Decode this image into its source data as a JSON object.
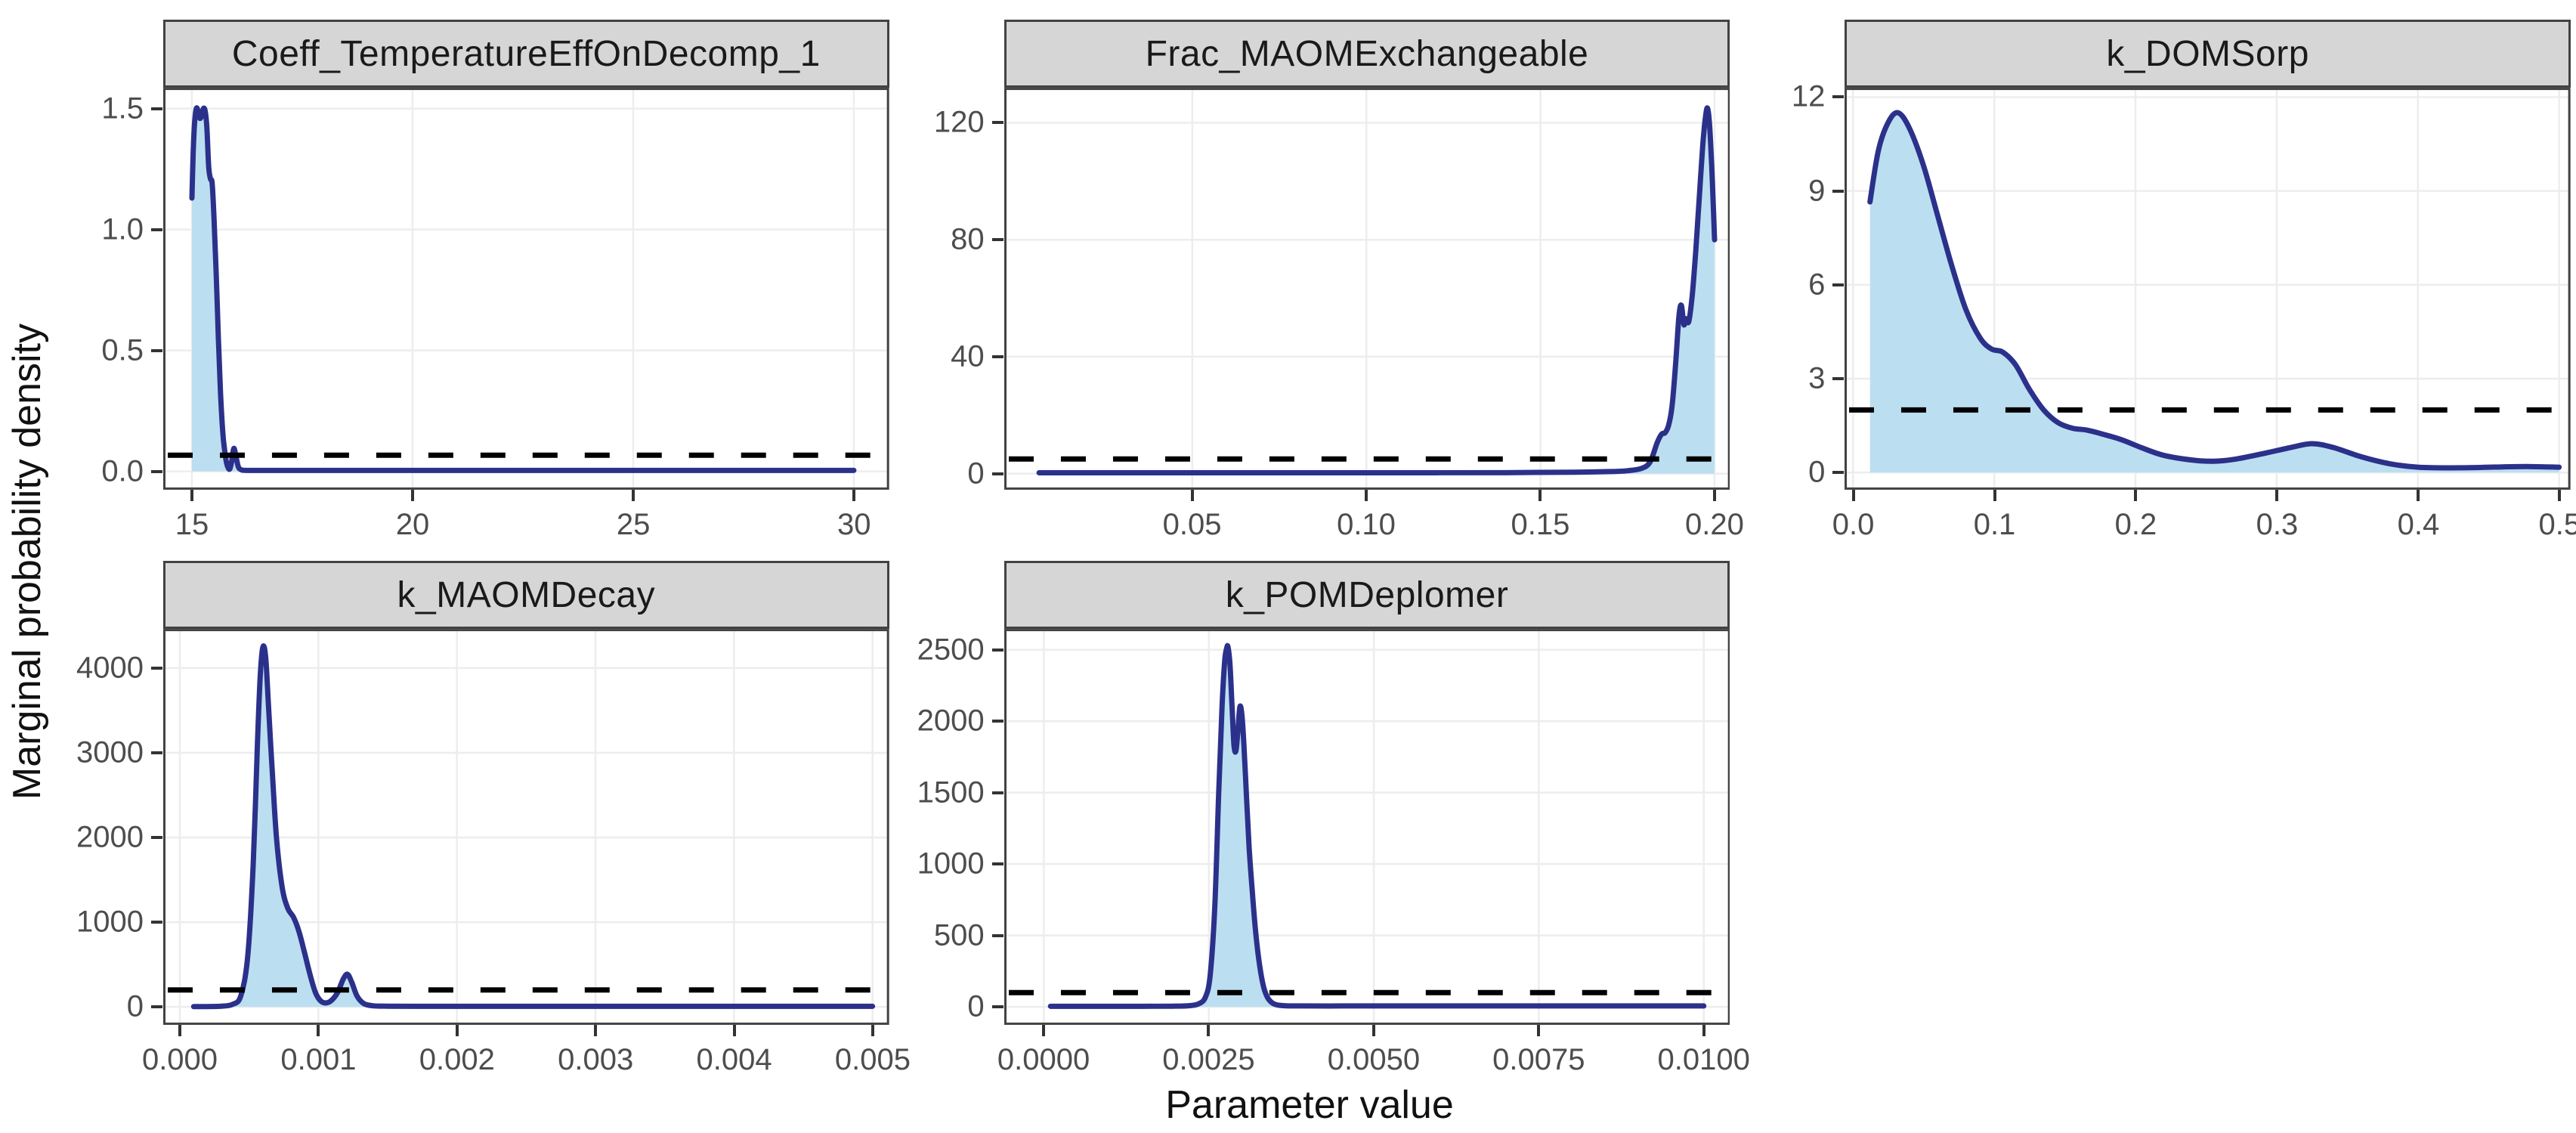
{
  "figure": {
    "xlabel": "Parameter value",
    "ylabel": "Marginal probability density"
  },
  "style": {
    "line_color": "#2B318A",
    "fill_color": "#BBDFF1",
    "prior_line_color": "#000000",
    "strip_bg": "#D6D6D6",
    "strip_text_color": "#1A1A1A",
    "panel_border_color": "#424242",
    "grid_color": "#EDEDED",
    "tick_mark_color": "#333333",
    "tick_label_color": "#4D4D4D",
    "background": "#FFFFFF"
  },
  "chart_data": [
    {
      "type": "area",
      "title": "Coeff_TemperatureEffOnDecomp_1",
      "xlim": [
        14.35,
        30.8
      ],
      "ylim": [
        -0.076,
        1.586
      ],
      "xtick_values": [
        15,
        20,
        25,
        30
      ],
      "xtick_labels": [
        "15",
        "20",
        "25",
        "30"
      ],
      "ytick_values": [
        0,
        0.5,
        1.0,
        1.5
      ],
      "ytick_labels": [
        "0.0",
        "0.5",
        "1.0",
        "1.5"
      ],
      "prior_density": 0.0667,
      "density_x": [
        15.0,
        15.03,
        15.06,
        15.1,
        15.14,
        15.18,
        15.22,
        15.26,
        15.3,
        15.34,
        15.38,
        15.42,
        15.46,
        15.5,
        15.55,
        15.6,
        15.65,
        15.7,
        15.74,
        15.78,
        15.82,
        15.86,
        15.9,
        15.95,
        16.0,
        16.05,
        16.1,
        16.2,
        16.5,
        17.0,
        18.0,
        20.0,
        23.0,
        26.0,
        30.0
      ],
      "density_y": [
        1.13,
        1.32,
        1.44,
        1.5,
        1.49,
        1.46,
        1.47,
        1.5,
        1.49,
        1.42,
        1.26,
        1.21,
        1.19,
        1.05,
        0.82,
        0.55,
        0.32,
        0.16,
        0.09,
        0.04,
        0.015,
        0.01,
        0.04,
        0.095,
        0.06,
        0.02,
        0.008,
        0.004,
        0.004,
        0.004,
        0.004,
        0.004,
        0.004,
        0.004,
        0.004
      ]
    },
    {
      "type": "area",
      "title": "Frac_MAOMExchangeable",
      "xlim": [
        -0.004,
        0.2045
      ],
      "ylim": [
        -5.5,
        132
      ],
      "xtick_values": [
        0.05,
        0.1,
        0.15,
        0.2
      ],
      "xtick_labels": [
        "0.05",
        "0.10",
        "0.15",
        "0.20"
      ],
      "ytick_values": [
        0,
        40,
        80,
        120
      ],
      "ytick_labels": [
        "0",
        "40",
        "80",
        "120"
      ],
      "prior_density": 5,
      "density_x": [
        0.006,
        0.02,
        0.05,
        0.08,
        0.11,
        0.14,
        0.16,
        0.17,
        0.175,
        0.179,
        0.1815,
        0.1835,
        0.1848,
        0.1858,
        0.1868,
        0.1878,
        0.1888,
        0.1898,
        0.1905,
        0.1912,
        0.1918,
        0.1926,
        0.1936,
        0.1946,
        0.1956,
        0.1966,
        0.1974,
        0.198,
        0.1986,
        0.1992,
        0.1997,
        0.2
      ],
      "density_y": [
        0.3,
        0.3,
        0.3,
        0.3,
        0.3,
        0.35,
        0.5,
        0.7,
        1.0,
        1.8,
        4.0,
        10.5,
        13.5,
        14.0,
        16.5,
        23,
        37,
        54,
        57.5,
        51,
        53,
        52,
        61,
        76,
        94,
        112,
        122,
        125,
        119,
        105,
        90,
        80
      ]
    },
    {
      "type": "area",
      "title": "k_DOMSorp",
      "xlim": [
        -0.006,
        0.508
      ],
      "ylim": [
        -0.55,
        12.3
      ],
      "xtick_values": [
        0.0,
        0.1,
        0.2,
        0.3,
        0.4,
        0.5
      ],
      "xtick_labels": [
        "0.0",
        "0.1",
        "0.2",
        "0.3",
        "0.4",
        "0.5"
      ],
      "ytick_values": [
        0,
        3,
        6,
        9,
        12
      ],
      "ytick_labels": [
        "0",
        "3",
        "6",
        "9",
        "12"
      ],
      "prior_density": 2,
      "density_x": [
        0.012,
        0.018,
        0.025,
        0.032,
        0.04,
        0.05,
        0.06,
        0.07,
        0.08,
        0.09,
        0.098,
        0.106,
        0.115,
        0.125,
        0.135,
        0.145,
        0.155,
        0.165,
        0.175,
        0.19,
        0.205,
        0.22,
        0.24,
        0.255,
        0.27,
        0.29,
        0.31,
        0.325,
        0.34,
        0.36,
        0.38,
        0.4,
        0.43,
        0.46,
        0.48,
        0.5
      ],
      "density_y": [
        8.65,
        10.3,
        11.2,
        11.5,
        11.0,
        9.8,
        8.2,
        6.6,
        5.2,
        4.3,
        3.95,
        3.85,
        3.45,
        2.65,
        2.0,
        1.6,
        1.42,
        1.36,
        1.25,
        1.05,
        0.78,
        0.55,
        0.4,
        0.36,
        0.42,
        0.6,
        0.8,
        0.92,
        0.8,
        0.5,
        0.28,
        0.17,
        0.15,
        0.18,
        0.19,
        0.17
      ]
    },
    {
      "type": "area",
      "title": "k_MAOMDecay",
      "xlim": [
        -0.00012,
        0.00512
      ],
      "ylim": [
        -212,
        4462
      ],
      "xtick_values": [
        0.0,
        0.001,
        0.002,
        0.003,
        0.004,
        0.005
      ],
      "xtick_labels": [
        "0.000",
        "0.001",
        "0.002",
        "0.003",
        "0.004",
        "0.005"
      ],
      "ytick_values": [
        0,
        1000,
        2000,
        3000,
        4000
      ],
      "ytick_labels": [
        "0",
        "1000",
        "2000",
        "3000",
        "4000"
      ],
      "prior_density": 200,
      "density_x": [
        0.0001,
        0.0002,
        0.0003,
        0.00038,
        0.00044,
        0.00049,
        0.00053,
        0.00056,
        0.00058,
        0.0006,
        0.00062,
        0.00064,
        0.00067,
        0.0007,
        0.00074,
        0.00078,
        0.00082,
        0.00086,
        0.0009,
        0.00094,
        0.00098,
        0.00102,
        0.00106,
        0.0011,
        0.00114,
        0.00118,
        0.00121,
        0.00124,
        0.00128,
        0.00133,
        0.0014,
        0.0015,
        0.0017,
        0.002,
        0.0025,
        0.003,
        0.0035,
        0.004,
        0.0045,
        0.005
      ],
      "density_y": [
        4,
        4,
        8,
        30,
        130,
        600,
        1700,
        3100,
        3900,
        4250,
        4120,
        3550,
        2700,
        1950,
        1400,
        1160,
        1060,
        890,
        640,
        380,
        165,
        65,
        48,
        85,
        175,
        330,
        385,
        295,
        125,
        38,
        12,
        8,
        7,
        7,
        7,
        7,
        7,
        7,
        7,
        7
      ]
    },
    {
      "type": "area",
      "title": "k_POMDeplomer",
      "xlim": [
        -0.0006,
        0.0104
      ],
      "ylim": [
        -126,
        2646
      ],
      "xtick_values": [
        0.0,
        0.0025,
        0.005,
        0.0075,
        0.01
      ],
      "xtick_labels": [
        "0.0000",
        "0.0025",
        "0.0050",
        "0.0075",
        "0.0100"
      ],
      "ytick_values": [
        0,
        500,
        1000,
        1500,
        2000,
        2500
      ],
      "ytick_labels": [
        "0",
        "500",
        "1000",
        "1500",
        "2000",
        "2500"
      ],
      "prior_density": 100,
      "density_x": [
        0.0001,
        0.0008,
        0.0015,
        0.002,
        0.0022,
        0.00235,
        0.00245,
        0.00252,
        0.00259,
        0.00265,
        0.0027,
        0.00274,
        0.00277,
        0.00279,
        0.00282,
        0.00285,
        0.00288,
        0.00291,
        0.00294,
        0.00297,
        0.003,
        0.00303,
        0.00307,
        0.00311,
        0.00316,
        0.00321,
        0.00327,
        0.00333,
        0.00339,
        0.00346,
        0.00355,
        0.0037,
        0.004,
        0.0045,
        0.005,
        0.006,
        0.0075,
        0.009,
        0.01
      ],
      "density_y": [
        4,
        4,
        4,
        5,
        8,
        22,
        70,
        220,
        700,
        1500,
        2100,
        2420,
        2510,
        2520,
        2400,
        2120,
        1840,
        1790,
        1930,
        2100,
        2050,
        1850,
        1480,
        1120,
        800,
        520,
        290,
        140,
        65,
        28,
        12,
        7,
        6,
        6,
        6,
        6,
        6,
        6,
        6
      ]
    }
  ]
}
